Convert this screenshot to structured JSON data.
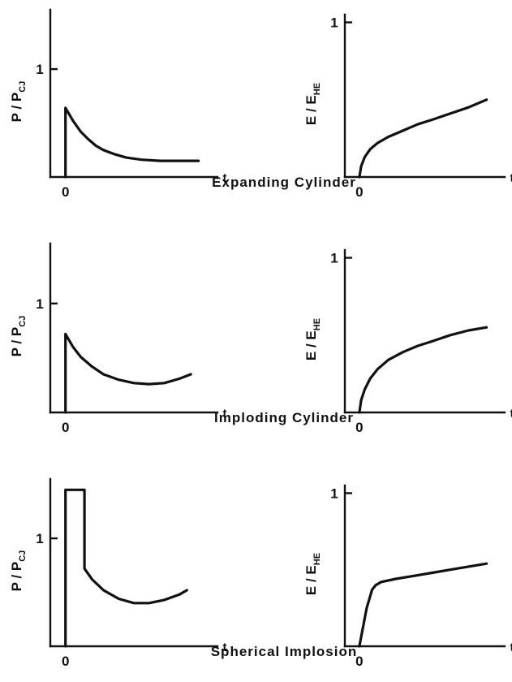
{
  "chart_data": [
    {
      "type": "line",
      "row_label": "Expanding Cylinder",
      "ylabel_main": "P / P",
      "ylabel_sub": "CJ",
      "xlabel": "t",
      "origin_label": "0",
      "ytick_label": "1",
      "xlim": [
        -0.4,
        4.0
      ],
      "ylim": [
        0,
        1.55
      ],
      "yticks": [
        1
      ],
      "series": [
        {
          "points": [
            [
              0,
              0
            ],
            [
              0,
              0.64
            ],
            [
              0.2,
              0.52
            ],
            [
              0.4,
              0.42
            ],
            [
              0.6,
              0.35
            ],
            [
              0.8,
              0.29
            ],
            [
              1.0,
              0.25
            ],
            [
              1.3,
              0.21
            ],
            [
              1.6,
              0.18
            ],
            [
              2.0,
              0.16
            ],
            [
              2.5,
              0.15
            ],
            [
              3.0,
              0.15
            ],
            [
              3.5,
              0.15
            ]
          ]
        }
      ]
    },
    {
      "type": "line",
      "ylabel_main": "E / E",
      "ylabel_sub": "HE",
      "xlabel": "t",
      "origin_label": "0",
      "ytick_label": "1",
      "xlim": [
        -0.4,
        4.0
      ],
      "ylim": [
        0,
        1.05
      ],
      "yticks": [
        1
      ],
      "series": [
        {
          "points": [
            [
              0,
              0
            ],
            [
              0.05,
              0.07
            ],
            [
              0.15,
              0.13
            ],
            [
              0.3,
              0.18
            ],
            [
              0.5,
              0.22
            ],
            [
              0.8,
              0.26
            ],
            [
              1.2,
              0.3
            ],
            [
              1.6,
              0.34
            ],
            [
              2.0,
              0.37
            ],
            [
              2.5,
              0.41
            ],
            [
              3.0,
              0.45
            ],
            [
              3.5,
              0.5
            ]
          ]
        }
      ]
    },
    {
      "type": "line",
      "row_label": "Imploding Cylinder",
      "ylabel_main": "P / P",
      "ylabel_sub": "CJ",
      "xlabel": "t",
      "origin_label": "0",
      "ytick_label": "1",
      "xlim": [
        -0.4,
        4.0
      ],
      "ylim": [
        0,
        1.55
      ],
      "yticks": [
        1
      ],
      "series": [
        {
          "points": [
            [
              0,
              0
            ],
            [
              0,
              0.72
            ],
            [
              0.2,
              0.6
            ],
            [
              0.4,
              0.51
            ],
            [
              0.7,
              0.42
            ],
            [
              1.0,
              0.35
            ],
            [
              1.4,
              0.3
            ],
            [
              1.8,
              0.27
            ],
            [
              2.2,
              0.26
            ],
            [
              2.6,
              0.27
            ],
            [
              3.0,
              0.31
            ],
            [
              3.3,
              0.35
            ]
          ]
        }
      ]
    },
    {
      "type": "line",
      "ylabel_main": "E / E",
      "ylabel_sub": "HE",
      "xlabel": "t",
      "origin_label": "0",
      "ytick_label": "1",
      "xlim": [
        -0.4,
        4.0
      ],
      "ylim": [
        0,
        1.05
      ],
      "yticks": [
        1
      ],
      "series": [
        {
          "points": [
            [
              0,
              0
            ],
            [
              0.05,
              0.08
            ],
            [
              0.15,
              0.15
            ],
            [
              0.3,
              0.22
            ],
            [
              0.5,
              0.28
            ],
            [
              0.8,
              0.34
            ],
            [
              1.2,
              0.39
            ],
            [
              1.6,
              0.43
            ],
            [
              2.0,
              0.46
            ],
            [
              2.5,
              0.5
            ],
            [
              3.0,
              0.53
            ],
            [
              3.5,
              0.55
            ]
          ]
        }
      ]
    },
    {
      "type": "line",
      "row_label": "Spherical Implosion",
      "ylabel_main": "P / P",
      "ylabel_sub": "CJ",
      "xlabel": "t",
      "origin_label": "0",
      "ytick_label": "1",
      "xlim": [
        -0.4,
        4.0
      ],
      "ylim": [
        0,
        1.55
      ],
      "yticks": [
        1
      ],
      "series": [
        {
          "points": [
            [
              0,
              0
            ],
            [
              0,
              1.45
            ],
            [
              0.5,
              1.45
            ],
            [
              0.5,
              0.72
            ],
            [
              0.7,
              0.62
            ],
            [
              1.0,
              0.52
            ],
            [
              1.4,
              0.44
            ],
            [
              1.8,
              0.4
            ],
            [
              2.2,
              0.4
            ],
            [
              2.6,
              0.43
            ],
            [
              3.0,
              0.48
            ],
            [
              3.2,
              0.52
            ]
          ]
        }
      ]
    },
    {
      "type": "line",
      "ylabel_main": "E / E",
      "ylabel_sub": "HE",
      "xlabel": "t",
      "origin_label": "0",
      "ytick_label": "1",
      "xlim": [
        -0.4,
        4.0
      ],
      "ylim": [
        0,
        1.05
      ],
      "yticks": [
        1
      ],
      "series": [
        {
          "points": [
            [
              0,
              0
            ],
            [
              0.2,
              0.25
            ],
            [
              0.35,
              0.37
            ],
            [
              0.45,
              0.4
            ],
            [
              0.6,
              0.42
            ],
            [
              1.0,
              0.44
            ],
            [
              1.5,
              0.46
            ],
            [
              2.0,
              0.48
            ],
            [
              2.5,
              0.5
            ],
            [
              3.0,
              0.52
            ],
            [
              3.5,
              0.54
            ]
          ]
        }
      ]
    }
  ]
}
